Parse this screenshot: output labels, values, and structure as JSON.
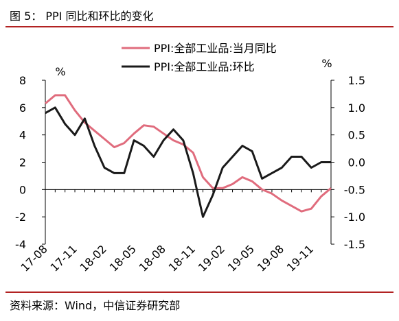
{
  "figure_title": "图 5：  PPI 同比和环比的变化",
  "source": "资料来源：Wind，中信证券研究部",
  "colors": {
    "yoy": "#e06c7d",
    "mom": "#1a1a1a",
    "rule": "#b22222",
    "axis": "#000000"
  },
  "chart_data": {
    "type": "line",
    "legend_position": "top-center",
    "grid": false,
    "left_unit": "%",
    "right_unit": "%",
    "left_ylim": [
      -4,
      8
    ],
    "left_ticks": [
      "8",
      "6",
      "4",
      "2",
      "0",
      "-2",
      "-4"
    ],
    "right_ylim": [
      -1.5,
      1.5
    ],
    "right_ticks": [
      "1.5",
      "1.0",
      "0.5",
      "0.0",
      "-0.5",
      "-1.0",
      "-1.5"
    ],
    "x": [
      "17-08",
      "17-09",
      "17-10",
      "17-11",
      "17-12",
      "18-01",
      "18-02",
      "18-03",
      "18-04",
      "18-05",
      "18-06",
      "18-07",
      "18-08",
      "18-09",
      "18-10",
      "18-11",
      "18-12",
      "19-01",
      "19-02",
      "19-03",
      "19-04",
      "19-05",
      "19-06",
      "19-07",
      "19-08",
      "19-09",
      "19-10",
      "19-11",
      "19-12",
      "20-01"
    ],
    "x_tick_labels": [
      "17-08",
      "17-11",
      "18-02",
      "18-05",
      "18-08",
      "18-11",
      "19-02",
      "19-05",
      "19-08",
      "19-11"
    ],
    "series": [
      {
        "name": "PPI:全部工业品:当月同比",
        "axis": "left",
        "values": [
          6.3,
          6.9,
          6.9,
          5.8,
          4.9,
          4.3,
          3.7,
          3.1,
          3.4,
          4.1,
          4.7,
          4.6,
          4.1,
          3.6,
          3.3,
          2.7,
          0.9,
          0.1,
          0.1,
          0.4,
          0.9,
          0.6,
          0.0,
          -0.3,
          -0.8,
          -1.2,
          -1.6,
          -1.4,
          -0.5,
          0.1
        ]
      },
      {
        "name": "PPI:全部工业品:环比",
        "axis": "right",
        "values": [
          0.9,
          1.0,
          0.7,
          0.5,
          0.8,
          0.3,
          -0.1,
          -0.2,
          -0.2,
          0.4,
          0.3,
          0.1,
          0.4,
          0.6,
          0.4,
          -0.2,
          -1.0,
          -0.6,
          -0.1,
          0.1,
          0.3,
          0.2,
          -0.3,
          -0.2,
          -0.1,
          0.1,
          0.1,
          -0.1,
          0.0,
          0.0
        ]
      }
    ]
  }
}
